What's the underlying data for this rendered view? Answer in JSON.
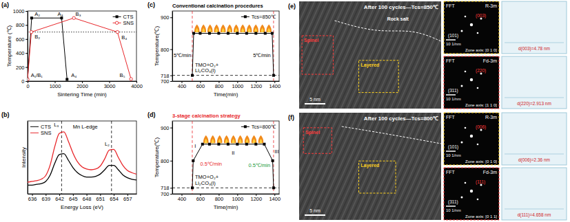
{
  "chart_data": [
    {
      "panel": "(a)",
      "type": "line",
      "x_label": "Sintering Time (min)",
      "y_label": "Temperature (℃)",
      "xlim": [
        0,
        4000
      ],
      "xticks": [
        0,
        1000,
        2000,
        3000,
        4000
      ],
      "ylim": [
        0,
        1000
      ],
      "yticks": [
        0,
        200,
        400,
        600,
        800,
        1000
      ],
      "legend": "top-right",
      "series": [
        {
          "name": "CTS",
          "color": "#000000",
          "marker": "square",
          "line_style": "solid",
          "x": [
            0,
            150,
            1250,
            1450
          ],
          "values": [
            25,
            900,
            900,
            25
          ]
        },
        {
          "name": "SNS",
          "color": "#e8262a",
          "marker": "open_circle",
          "line_style": "solid",
          "x": [
            0,
            140,
            1700,
            3300,
            3800
          ],
          "values": [
            25,
            700,
            900,
            700,
            30
          ]
        }
      ],
      "reference_lines": [
        {
          "y": 700,
          "line_style": "dotted",
          "color": "#000000"
        }
      ],
      "annotations": [
        {
          "text": "A₁/B₁",
          "x": 120,
          "y": 55
        },
        {
          "text": "A₂",
          "x": 260,
          "y": 935
        },
        {
          "text": "B₂",
          "x": 260,
          "y": 610
        },
        {
          "text": "A₃",
          "x": 1100,
          "y": 935
        },
        {
          "text": "B₃",
          "x": 1760,
          "y": 935
        },
        {
          "text": "B₄",
          "x": 3450,
          "y": 600
        },
        {
          "text": "A₄",
          "x": 1600,
          "y": 55
        },
        {
          "text": "B₅",
          "x": 3380,
          "y": 55
        }
      ]
    },
    {
      "panel": "(b)",
      "type": "line",
      "x_label": "Energy Loss (eV)",
      "y_label": "Intensity",
      "xlim": [
        635,
        659
      ],
      "xticks": [
        636,
        639,
        642,
        645,
        648,
        651,
        654,
        657
      ],
      "ylim": [
        0,
        1
      ],
      "tick_labels": "x",
      "legend": "top-left",
      "x": [
        635,
        636,
        637,
        638,
        639,
        640,
        641,
        642,
        643,
        644,
        645,
        646,
        647,
        648,
        649,
        650,
        651,
        652,
        653,
        654,
        655,
        656,
        657,
        658,
        659
      ],
      "series": [
        {
          "name": "CTS",
          "color": "#000000",
          "values": [
            0.12,
            0.12,
            0.13,
            0.14,
            0.17,
            0.26,
            0.42,
            0.54,
            0.55,
            0.46,
            0.36,
            0.29,
            0.25,
            0.23,
            0.23,
            0.24,
            0.27,
            0.33,
            0.39,
            0.39,
            0.33,
            0.26,
            0.22,
            0.2,
            0.19
          ]
        },
        {
          "name": "SNS",
          "color": "#e8262a",
          "values": [
            0.16,
            0.17,
            0.18,
            0.2,
            0.25,
            0.4,
            0.65,
            0.83,
            0.85,
            0.72,
            0.56,
            0.44,
            0.37,
            0.34,
            0.33,
            0.34,
            0.38,
            0.48,
            0.6,
            0.61,
            0.5,
            0.39,
            0.32,
            0.29,
            0.27
          ]
        }
      ],
      "reference_lines": [
        {
          "x": 642.5,
          "line_style": "dashed",
          "color": "#000000"
        },
        {
          "x": 653.5,
          "line_style": "dashed",
          "color": "#000000"
        }
      ],
      "annotations": [
        {
          "text": "Mn L-edge",
          "x": 645,
          "y": 0.9
        },
        {
          "text": "L₃",
          "x": 640.8,
          "y": 0.92
        },
        {
          "text": "L₂",
          "x": 652,
          "y": 0.66
        }
      ]
    },
    {
      "panel": "(c)",
      "type": "line",
      "title": "Conventional calcination procedures",
      "x_label": "Time(min)",
      "y_label": "Temperature(℃)",
      "xlim": [
        300,
        1450
      ],
      "xticks": [
        400,
        600,
        800,
        1000,
        1200,
        1400
      ],
      "ylim": [
        700,
        920
      ],
      "yticks": [
        700,
        718,
        800,
        900
      ],
      "legend": "top-right",
      "series": [
        {
          "name": "Tcs=850℃",
          "color": "#000000",
          "marker": "square",
          "line_style": "solid",
          "x": [
            515,
            530,
            600,
            700,
            800,
            900,
            1000,
            1100,
            1200,
            1300,
            1375,
            1390
          ],
          "values": [
            718,
            850,
            850,
            850,
            850,
            850,
            850,
            850,
            850,
            850,
            850,
            718
          ]
        }
      ],
      "reference_lines": [
        {
          "y": 718,
          "line_style": "dashed",
          "color": "#000000"
        },
        {
          "x": 515,
          "line_style": "dashed",
          "color": "#e8262a"
        },
        {
          "x": 1390,
          "line_style": "dashed",
          "color": "#e8262a"
        }
      ],
      "annotations": [
        {
          "text": "5℃/min",
          "x": 315,
          "y": 775
        },
        {
          "text": "5℃/min",
          "x": 1170,
          "y": 775
        },
        {
          "text": "TMO+O₂+",
          "x": 545,
          "y": 745
        },
        {
          "text": "Li₂CO₃(l)",
          "x": 545,
          "y": 727
        }
      ]
    },
    {
      "panel": "(d)",
      "type": "line",
      "title": "3-stage calcination strategy",
      "title_color": "#e8262a",
      "x_label": "Time(min)",
      "y_label": "Temperature(℃)",
      "xlim": [
        300,
        1450
      ],
      "xticks": [
        400,
        600,
        800,
        1000,
        1200,
        1400
      ],
      "ylim": [
        700,
        920
      ],
      "yticks": [
        700,
        718,
        800,
        900
      ],
      "legend": "top-right",
      "series": [
        {
          "name": "Tcs=800℃",
          "color": "#000000",
          "marker": "square",
          "line_style": "solid",
          "x": [
            515,
            525,
            625,
            700,
            800,
            900,
            1000,
            1100,
            1200,
            1290,
            1380,
            1390
          ],
          "values": [
            718,
            800,
            850,
            850,
            850,
            850,
            850,
            850,
            850,
            850,
            800,
            718
          ]
        }
      ],
      "reference_lines": [
        {
          "y": 718,
          "line_style": "dashed",
          "color": "#000000"
        },
        {
          "x": 515,
          "line_style": "dashed",
          "color": "#e8262a"
        },
        {
          "x": 1390,
          "line_style": "dashed",
          "color": "#e8262a"
        }
      ],
      "annotations": [
        {
          "text": "I",
          "x": 540,
          "y": 840
        },
        {
          "text": "II",
          "x": 940,
          "y": 818
        },
        {
          "text": "III",
          "x": 1400,
          "y": 822
        },
        {
          "text": "0.5℃/min",
          "x": 600,
          "y": 785,
          "color": "#e8262a"
        },
        {
          "text": "0.5℃/min",
          "x": 1120,
          "y": 780,
          "color": "#1a9a3a"
        },
        {
          "text": "TMO+O₂+",
          "x": 545,
          "y": 745
        },
        {
          "text": "Li₂CO₃(l)",
          "x": 545,
          "y": 727
        }
      ]
    }
  ],
  "image_panels": [
    {
      "panel": "(e)",
      "caption": "After 100 cycles—Tcs=850℃",
      "scale_bar": "5 nm",
      "regions": [
        {
          "label": "Rock salt",
          "color": "#ffffff"
        },
        {
          "label": "Spinel",
          "color": "#ff3b3b"
        },
        {
          "label": "Layered",
          "color": "#ffd21f"
        }
      ],
      "fft": [
        {
          "title": "FFT",
          "phase": "R-3m",
          "color": "#ffd21f",
          "spots": [
            {
              "label": "(101)",
              "color": "#ffffff"
            },
            {
              "label": "(003)",
              "color": "#ff3b3b"
            }
          ],
          "scale_bar": "10 1/nm",
          "zone_axis": "Zone axis: [0 1 0]",
          "d_spacing": "d(003)=4.78 nm"
        },
        {
          "title": "FFT",
          "phase": "Fd-3m",
          "color": "#ff3b3b",
          "spots": [
            {
              "label": "(311)",
              "color": "#ffffff"
            },
            {
              "label": "(220)",
              "color": "#ff3b3b"
            }
          ],
          "scale_bar": "10 1/nm",
          "zone_axis": "Zone axis: [1 1 0]",
          "d_spacing": "d(220)=2.913 nm"
        }
      ]
    },
    {
      "panel": "(f)",
      "caption": "After 100 cycles—Tcs=800℃",
      "scale_bar": "5 nm",
      "regions": [
        {
          "label": "Spinel",
          "color": "#ff3b3b"
        },
        {
          "label": "Layered",
          "color": "#ffd21f"
        }
      ],
      "fft": [
        {
          "title": "FFT",
          "phase": "R-3m",
          "color": "#ffd21f",
          "spots": [
            {
              "label": "(101)",
              "color": "#ffffff"
            },
            {
              "label": "(006)",
              "color": "#ff3b3b"
            }
          ],
          "scale_bar": "10 1/nm",
          "zone_axis": "Zone axis: [0 1 0]",
          "d_spacing": "d(006)=2.36 nm"
        },
        {
          "title": "FFT",
          "phase": "Fd-3m",
          "color": "#ff3b3b",
          "spots": [
            {
              "label": "(311)",
              "color": "#ffffff"
            },
            {
              "label": "(111)",
              "color": "#ff3b3b"
            }
          ],
          "scale_bar": "10 1/nm",
          "zone_axis": "Zone axis: [0 1 1]",
          "d_spacing": "d(111)=4.658 nm"
        }
      ]
    }
  ]
}
